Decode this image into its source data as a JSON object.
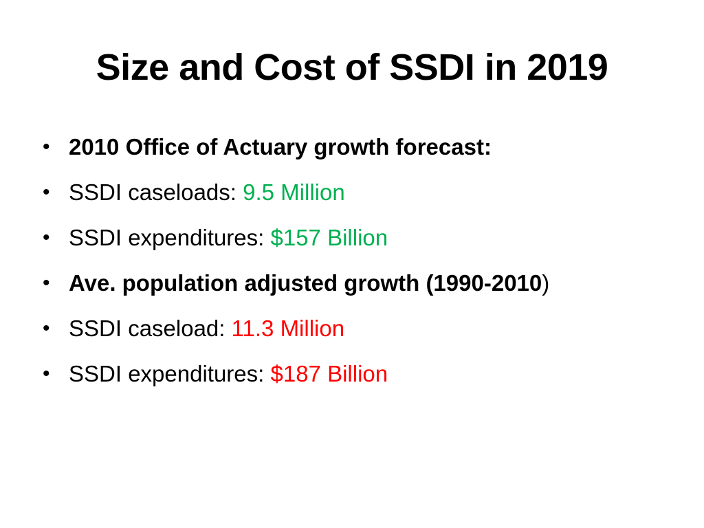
{
  "slide": {
    "title": "Size and Cost of SSDI in 2019",
    "bullet_glyph": "•",
    "items": [
      {
        "label": "2010 Office of Actuary growth forecast:",
        "value": "",
        "bold": true,
        "value_color": ""
      },
      {
        "label": "SSDI caseloads: ",
        "value": "9.5 Million",
        "bold": false,
        "value_color": "#00b050"
      },
      {
        "label": "SSDI expenditures: ",
        "value": "$157 Billion",
        "bold": false,
        "value_color": "#00b050"
      },
      {
        "label": "Ave. population adjusted growth (1990-2010",
        "value": ")",
        "bold": true,
        "value_color": "#000000"
      },
      {
        "label": "SSDI caseload: ",
        "value": "11.3 Million",
        "bold": false,
        "value_color": "#ff0000"
      },
      {
        "label": "SSDI expenditures: ",
        "value": "$187 Billion",
        "bold": false,
        "value_color": "#ff0000"
      }
    ]
  }
}
